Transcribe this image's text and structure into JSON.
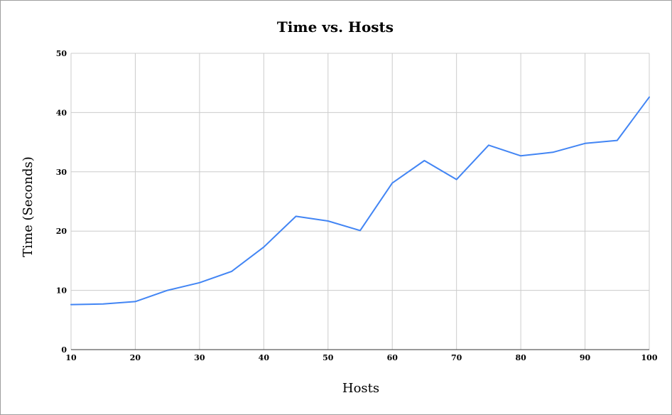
{
  "chart_data": {
    "type": "line",
    "title": "Time vs. Hosts",
    "xlabel": "Hosts",
    "ylabel": "Time (Seconds)",
    "xlim": [
      10,
      100
    ],
    "ylim": [
      0,
      50
    ],
    "x_ticks": [
      10,
      20,
      30,
      40,
      50,
      60,
      70,
      80,
      90,
      100
    ],
    "y_ticks": [
      0,
      10,
      20,
      30,
      40,
      50
    ],
    "grid": true,
    "legend": "none",
    "series": [
      {
        "color": "#4285f4",
        "x": [
          10,
          15,
          20,
          25,
          30,
          35,
          40,
          45,
          50,
          55,
          60,
          65,
          70,
          75,
          80,
          85,
          90,
          95,
          100
        ],
        "y": [
          7.6,
          7.7,
          8.1,
          10.0,
          11.3,
          13.2,
          17.3,
          22.5,
          21.7,
          20.1,
          28.1,
          31.9,
          28.7,
          34.5,
          32.7,
          33.3,
          34.8,
          35.3,
          42.6
        ]
      }
    ]
  }
}
